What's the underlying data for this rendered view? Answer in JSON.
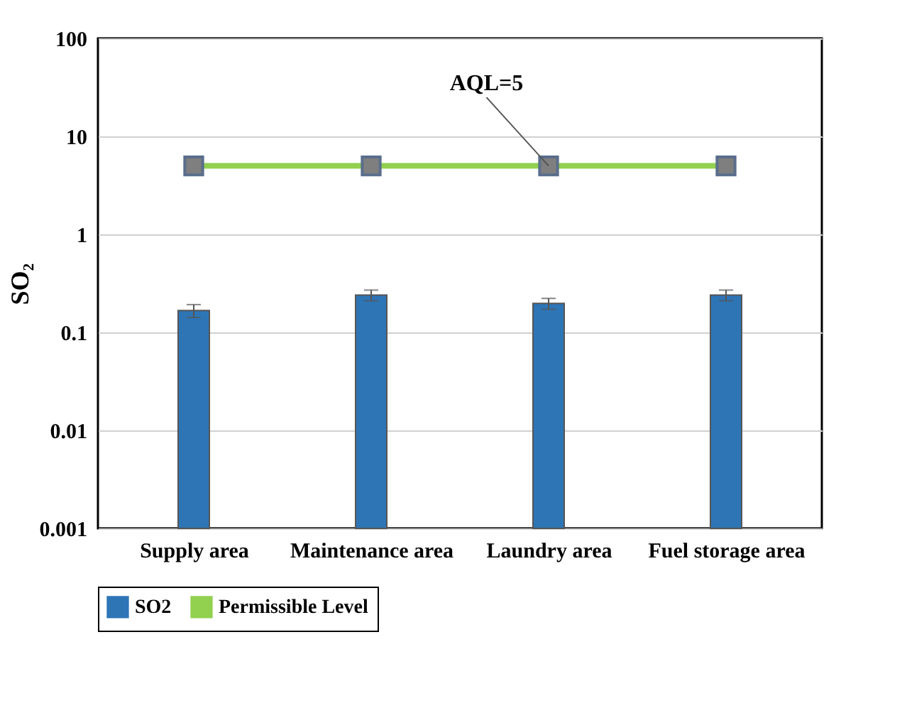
{
  "chart_data": {
    "type": "bar",
    "ylabel": "SO₂",
    "categories": [
      "Supply area",
      "Maintenance area",
      "Laundry area",
      "Fuel storage area"
    ],
    "series": [
      {
        "name": "SO2",
        "color": "#2e75b6",
        "values": [
          0.167,
          0.24,
          0.197,
          0.24
        ],
        "errors": [
          0.025,
          0.03,
          0.025,
          0.03
        ]
      },
      {
        "name": "Permissible Level",
        "type": "line",
        "color": "#92d050",
        "marker": "square",
        "values": [
          5,
          5,
          5,
          5
        ]
      }
    ],
    "log": true,
    "ylim": [
      0.001,
      100
    ],
    "yticks": [
      0.001,
      0.01,
      0.1,
      1,
      10,
      100
    ],
    "grid": "y",
    "legend": "bottom",
    "annotations": [
      {
        "text": "AQL=5",
        "x": "Laundry area",
        "y": 5
      }
    ]
  }
}
